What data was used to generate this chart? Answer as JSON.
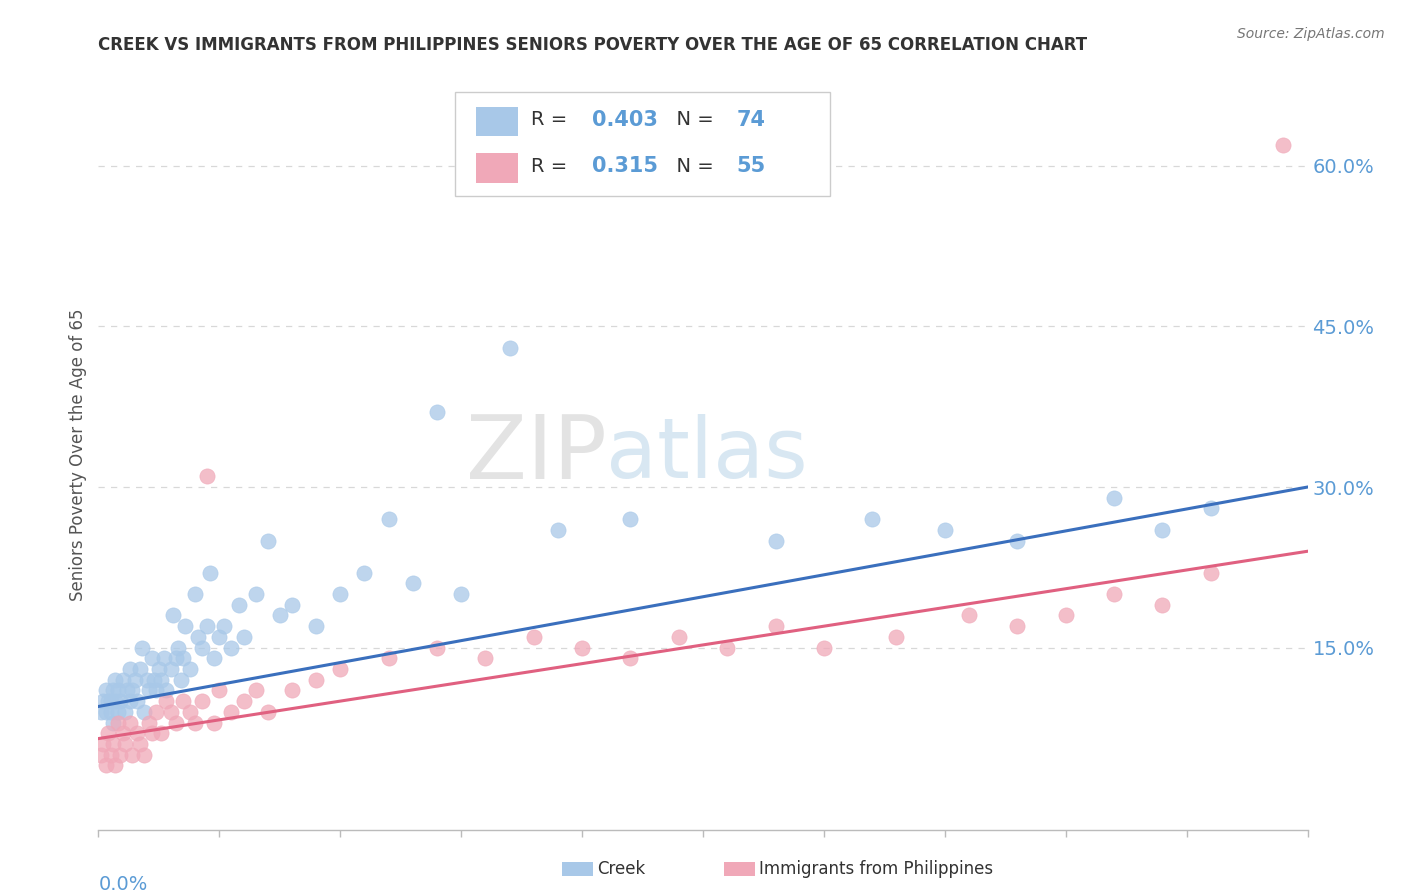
{
  "title": "CREEK VS IMMIGRANTS FROM PHILIPPINES SENIORS POVERTY OVER THE AGE OF 65 CORRELATION CHART",
  "source": "Source: ZipAtlas.com",
  "ylabel": "Seniors Poverty Over the Age of 65",
  "x_min": 0.0,
  "x_max": 0.5,
  "y_min": -0.02,
  "y_max": 0.68,
  "y_ticks": [
    0.15,
    0.3,
    0.45,
    0.6
  ],
  "y_tick_labels": [
    "15.0%",
    "30.0%",
    "45.0%",
    "60.0%"
  ],
  "creek_color": "#a8c8e8",
  "philippines_color": "#f0a8b8",
  "creek_line_color": "#3a6fbd",
  "philippines_line_color": "#e06080",
  "creek_R": 0.403,
  "creek_N": 74,
  "philippines_R": 0.315,
  "philippines_N": 55,
  "creek_intercept": 0.095,
  "creek_slope": 0.41,
  "philippines_intercept": 0.065,
  "philippines_slope": 0.35,
  "creek_x": [
    0.001,
    0.002,
    0.003,
    0.003,
    0.004,
    0.005,
    0.005,
    0.006,
    0.006,
    0.007,
    0.007,
    0.008,
    0.008,
    0.009,
    0.01,
    0.011,
    0.012,
    0.013,
    0.013,
    0.014,
    0.015,
    0.016,
    0.017,
    0.018,
    0.019,
    0.02,
    0.021,
    0.022,
    0.023,
    0.024,
    0.025,
    0.026,
    0.027,
    0.028,
    0.03,
    0.031,
    0.032,
    0.033,
    0.034,
    0.035,
    0.036,
    0.038,
    0.04,
    0.041,
    0.043,
    0.045,
    0.046,
    0.048,
    0.05,
    0.052,
    0.055,
    0.058,
    0.06,
    0.065,
    0.07,
    0.075,
    0.08,
    0.09,
    0.1,
    0.11,
    0.12,
    0.13,
    0.14,
    0.15,
    0.17,
    0.19,
    0.22,
    0.28,
    0.32,
    0.35,
    0.38,
    0.42,
    0.44,
    0.46
  ],
  "creek_y": [
    0.09,
    0.1,
    0.09,
    0.11,
    0.1,
    0.1,
    0.09,
    0.11,
    0.08,
    0.1,
    0.12,
    0.09,
    0.11,
    0.1,
    0.12,
    0.09,
    0.11,
    0.1,
    0.13,
    0.11,
    0.12,
    0.1,
    0.13,
    0.15,
    0.09,
    0.12,
    0.11,
    0.14,
    0.12,
    0.11,
    0.13,
    0.12,
    0.14,
    0.11,
    0.13,
    0.18,
    0.14,
    0.15,
    0.12,
    0.14,
    0.17,
    0.13,
    0.2,
    0.16,
    0.15,
    0.17,
    0.22,
    0.14,
    0.16,
    0.17,
    0.15,
    0.19,
    0.16,
    0.2,
    0.25,
    0.18,
    0.19,
    0.17,
    0.2,
    0.22,
    0.27,
    0.21,
    0.37,
    0.2,
    0.43,
    0.26,
    0.27,
    0.25,
    0.27,
    0.26,
    0.25,
    0.29,
    0.26,
    0.28
  ],
  "philippines_x": [
    0.001,
    0.002,
    0.003,
    0.004,
    0.005,
    0.006,
    0.007,
    0.008,
    0.009,
    0.01,
    0.011,
    0.013,
    0.014,
    0.016,
    0.017,
    0.019,
    0.021,
    0.022,
    0.024,
    0.026,
    0.028,
    0.03,
    0.032,
    0.035,
    0.038,
    0.04,
    0.043,
    0.045,
    0.048,
    0.05,
    0.055,
    0.06,
    0.065,
    0.07,
    0.08,
    0.09,
    0.1,
    0.12,
    0.14,
    0.16,
    0.18,
    0.2,
    0.22,
    0.24,
    0.26,
    0.28,
    0.3,
    0.33,
    0.36,
    0.38,
    0.4,
    0.42,
    0.44,
    0.46,
    0.49
  ],
  "philippines_y": [
    0.05,
    0.06,
    0.04,
    0.07,
    0.05,
    0.06,
    0.04,
    0.08,
    0.05,
    0.07,
    0.06,
    0.08,
    0.05,
    0.07,
    0.06,
    0.05,
    0.08,
    0.07,
    0.09,
    0.07,
    0.1,
    0.09,
    0.08,
    0.1,
    0.09,
    0.08,
    0.1,
    0.31,
    0.08,
    0.11,
    0.09,
    0.1,
    0.11,
    0.09,
    0.11,
    0.12,
    0.13,
    0.14,
    0.15,
    0.14,
    0.16,
    0.15,
    0.14,
    0.16,
    0.15,
    0.17,
    0.15,
    0.16,
    0.18,
    0.17,
    0.18,
    0.2,
    0.19,
    0.22,
    0.62
  ],
  "bg_color": "#ffffff",
  "grid_color": "#d8d8d8",
  "title_color": "#333333",
  "tick_color": "#5b9bd5",
  "legend_color": "#5b9bd5"
}
